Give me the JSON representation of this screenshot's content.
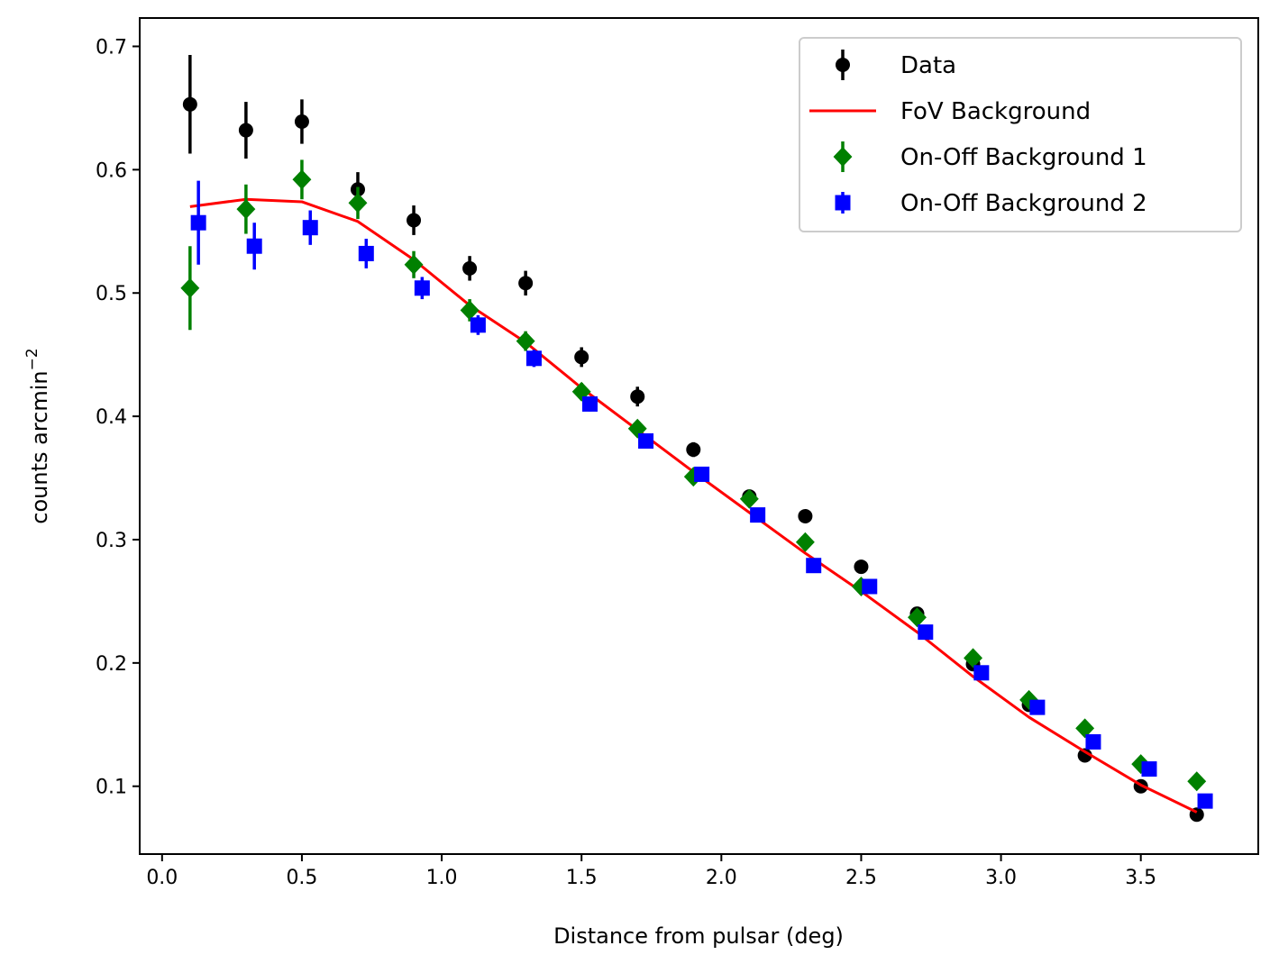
{
  "chart_data": {
    "type": "scatter",
    "title": "",
    "xlabel": "Distance from pulsar (deg)",
    "ylabel_main": "counts  arcmin",
    "ylabel_superscript": "−2",
    "xlim": [
      -0.08,
      3.92
    ],
    "ylim": [
      0.045,
      0.723
    ],
    "xticks": [
      0.0,
      0.5,
      1.0,
      1.5,
      2.0,
      2.5,
      3.0,
      3.5
    ],
    "xtick_labels": [
      "0.0",
      "0.5",
      "1.0",
      "1.5",
      "2.0",
      "2.5",
      "3.0",
      "3.5"
    ],
    "yticks": [
      0.1,
      0.2,
      0.3,
      0.4,
      0.5,
      0.6,
      0.7
    ],
    "ytick_labels": [
      "0.1",
      "0.2",
      "0.3",
      "0.4",
      "0.5",
      "0.6",
      "0.7"
    ],
    "grid": false,
    "legend_position": "top-right",
    "series": [
      {
        "name": "Data",
        "kind": "errorbar",
        "marker": "circle",
        "color": "#000000",
        "x": [
          0.1,
          0.3,
          0.5,
          0.7,
          0.9,
          1.1,
          1.3,
          1.5,
          1.7,
          1.9,
          2.1,
          2.3,
          2.5,
          2.7,
          2.9,
          3.1,
          3.3,
          3.5,
          3.7
        ],
        "y": [
          0.653,
          0.632,
          0.639,
          0.584,
          0.559,
          0.52,
          0.508,
          0.448,
          0.416,
          0.373,
          0.335,
          0.319,
          0.278,
          0.24,
          0.199,
          0.166,
          0.125,
          0.1,
          0.077
        ],
        "yerr": [
          0.04,
          0.023,
          0.018,
          0.014,
          0.012,
          0.01,
          0.01,
          0.008,
          0.008,
          0.006,
          0.005,
          0.004,
          0.004,
          0.004,
          0.003,
          0.003,
          0.003,
          0.003,
          0.002
        ]
      },
      {
        "name": "FoV Background",
        "kind": "line",
        "color": "#ff0000",
        "x": [
          0.1,
          0.3,
          0.5,
          0.7,
          0.9,
          1.1,
          1.3,
          1.5,
          1.7,
          1.9,
          2.1,
          2.3,
          2.5,
          2.7,
          2.9,
          3.1,
          3.3,
          3.5,
          3.7
        ],
        "y": [
          0.57,
          0.576,
          0.574,
          0.558,
          0.527,
          0.49,
          0.46,
          0.423,
          0.389,
          0.355,
          0.322,
          0.289,
          0.258,
          0.225,
          0.189,
          0.156,
          0.128,
          0.101,
          0.079
        ]
      },
      {
        "name": "On-Off Background 1",
        "kind": "errorbar",
        "marker": "diamond",
        "color": "#008000",
        "x": [
          0.1,
          0.3,
          0.5,
          0.7,
          0.9,
          1.1,
          1.3,
          1.5,
          1.7,
          1.9,
          2.1,
          2.3,
          2.5,
          2.7,
          2.9,
          3.1,
          3.3,
          3.5,
          3.7
        ],
        "y": [
          0.504,
          0.568,
          0.592,
          0.573,
          0.523,
          0.486,
          0.461,
          0.42,
          0.39,
          0.351,
          0.333,
          0.298,
          0.262,
          0.237,
          0.204,
          0.17,
          0.147,
          0.118,
          0.104
        ],
        "yerr": [
          0.034,
          0.02,
          0.016,
          0.013,
          0.011,
          0.009,
          0.008,
          0.007,
          0.006,
          0.005,
          0.005,
          0.004,
          0.004,
          0.003,
          0.003,
          0.003,
          0.003,
          0.002,
          0.002
        ]
      },
      {
        "name": "On-Off Background 2",
        "kind": "errorbar",
        "marker": "square",
        "color": "#0000ff",
        "x": [
          0.13,
          0.33,
          0.53,
          0.73,
          0.93,
          1.13,
          1.33,
          1.53,
          1.73,
          1.93,
          2.13,
          2.33,
          2.53,
          2.73,
          2.93,
          3.13,
          3.33,
          3.53,
          3.73
        ],
        "y": [
          0.557,
          0.538,
          0.553,
          0.532,
          0.504,
          0.474,
          0.447,
          0.41,
          0.38,
          0.353,
          0.32,
          0.279,
          0.262,
          0.225,
          0.192,
          0.164,
          0.136,
          0.114,
          0.088
        ],
        "yerr": [
          0.034,
          0.019,
          0.014,
          0.012,
          0.009,
          0.008,
          0.007,
          0.006,
          0.005,
          0.005,
          0.004,
          0.004,
          0.003,
          0.003,
          0.003,
          0.003,
          0.002,
          0.002,
          0.002
        ]
      }
    ]
  }
}
